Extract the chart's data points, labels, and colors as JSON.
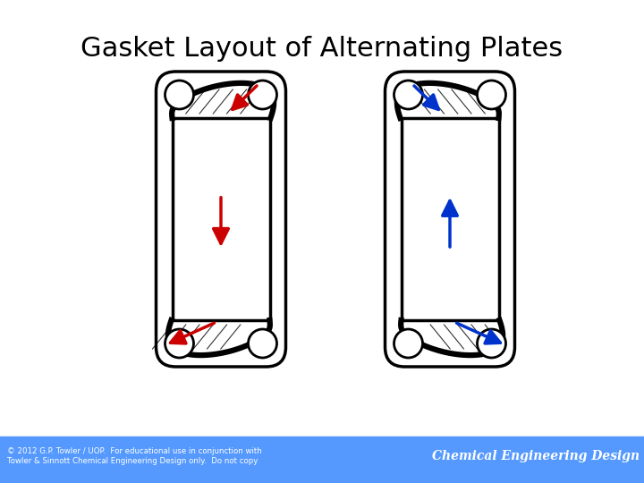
{
  "title": "Gasket Layout of Alternating Plates",
  "title_fontsize": 22,
  "title_fontweight": "normal",
  "bg_color": "#ffffff",
  "footer_bg": "#5599ff",
  "footer_text_left": "© 2012 G.P. Towler / UOP.  For educational use in conjunction with\nTowler & Sinnott Chemical Engineering Design only.  Do not copy",
  "footer_text_right": "Chemical Engineering Design",
  "red_color": "#cc0000",
  "blue_color": "#0033cc"
}
